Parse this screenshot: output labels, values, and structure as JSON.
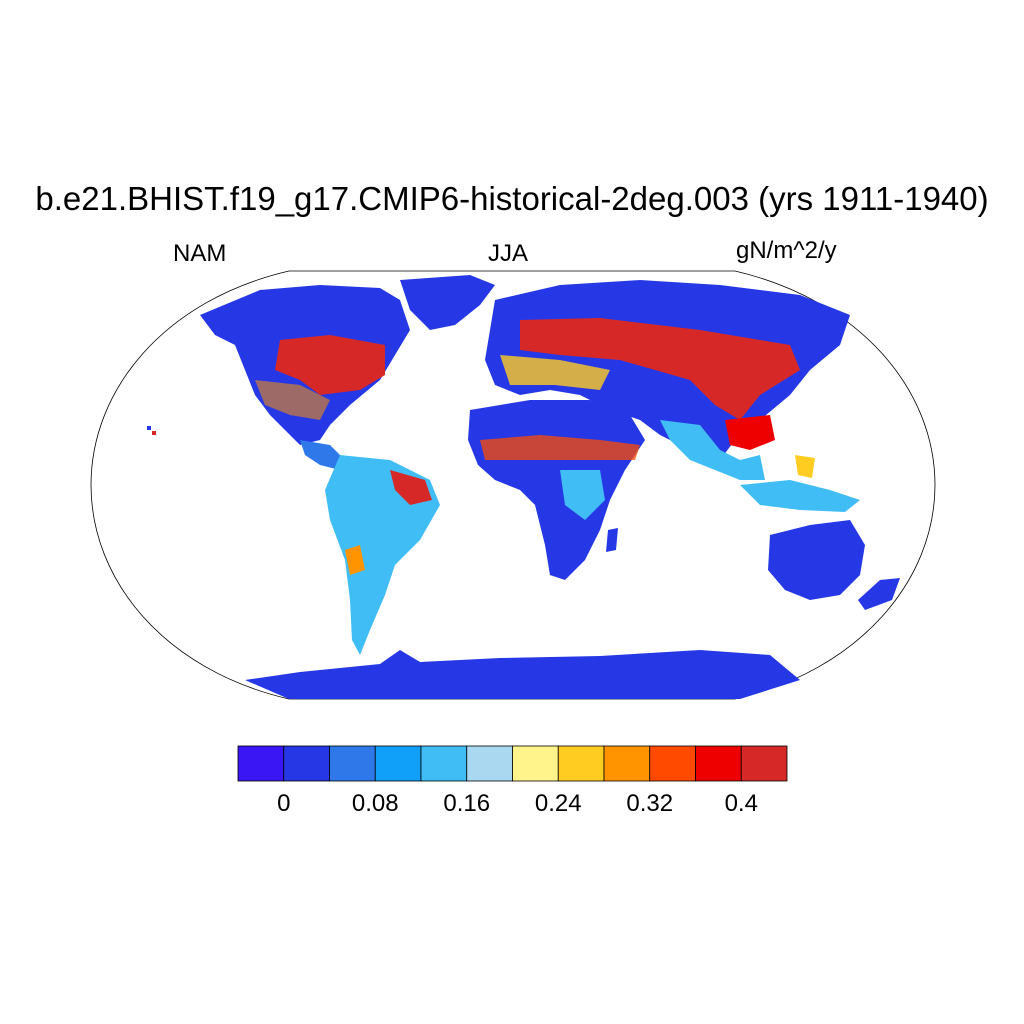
{
  "title": "b.e21.BHIST.f19_g17.CMIP6-historical-2deg.003 (yrs 1911-1940)",
  "subtitle_left": "NAM",
  "subtitle_center": "JJA",
  "subtitle_right": "gN/m^2/y",
  "colorbar": {
    "colors": [
      "#3b16f5",
      "#2638e6",
      "#2e78ea",
      "#10a0fa",
      "#41bdf5",
      "#a9d8f0",
      "#fff48c",
      "#ffcc22",
      "#ff9400",
      "#ff4a00",
      "#ee0000",
      "#d72828"
    ],
    "tick_labels": [
      "0",
      "0.08",
      "0.16",
      "0.24",
      "0.32",
      "0.4"
    ]
  }
}
